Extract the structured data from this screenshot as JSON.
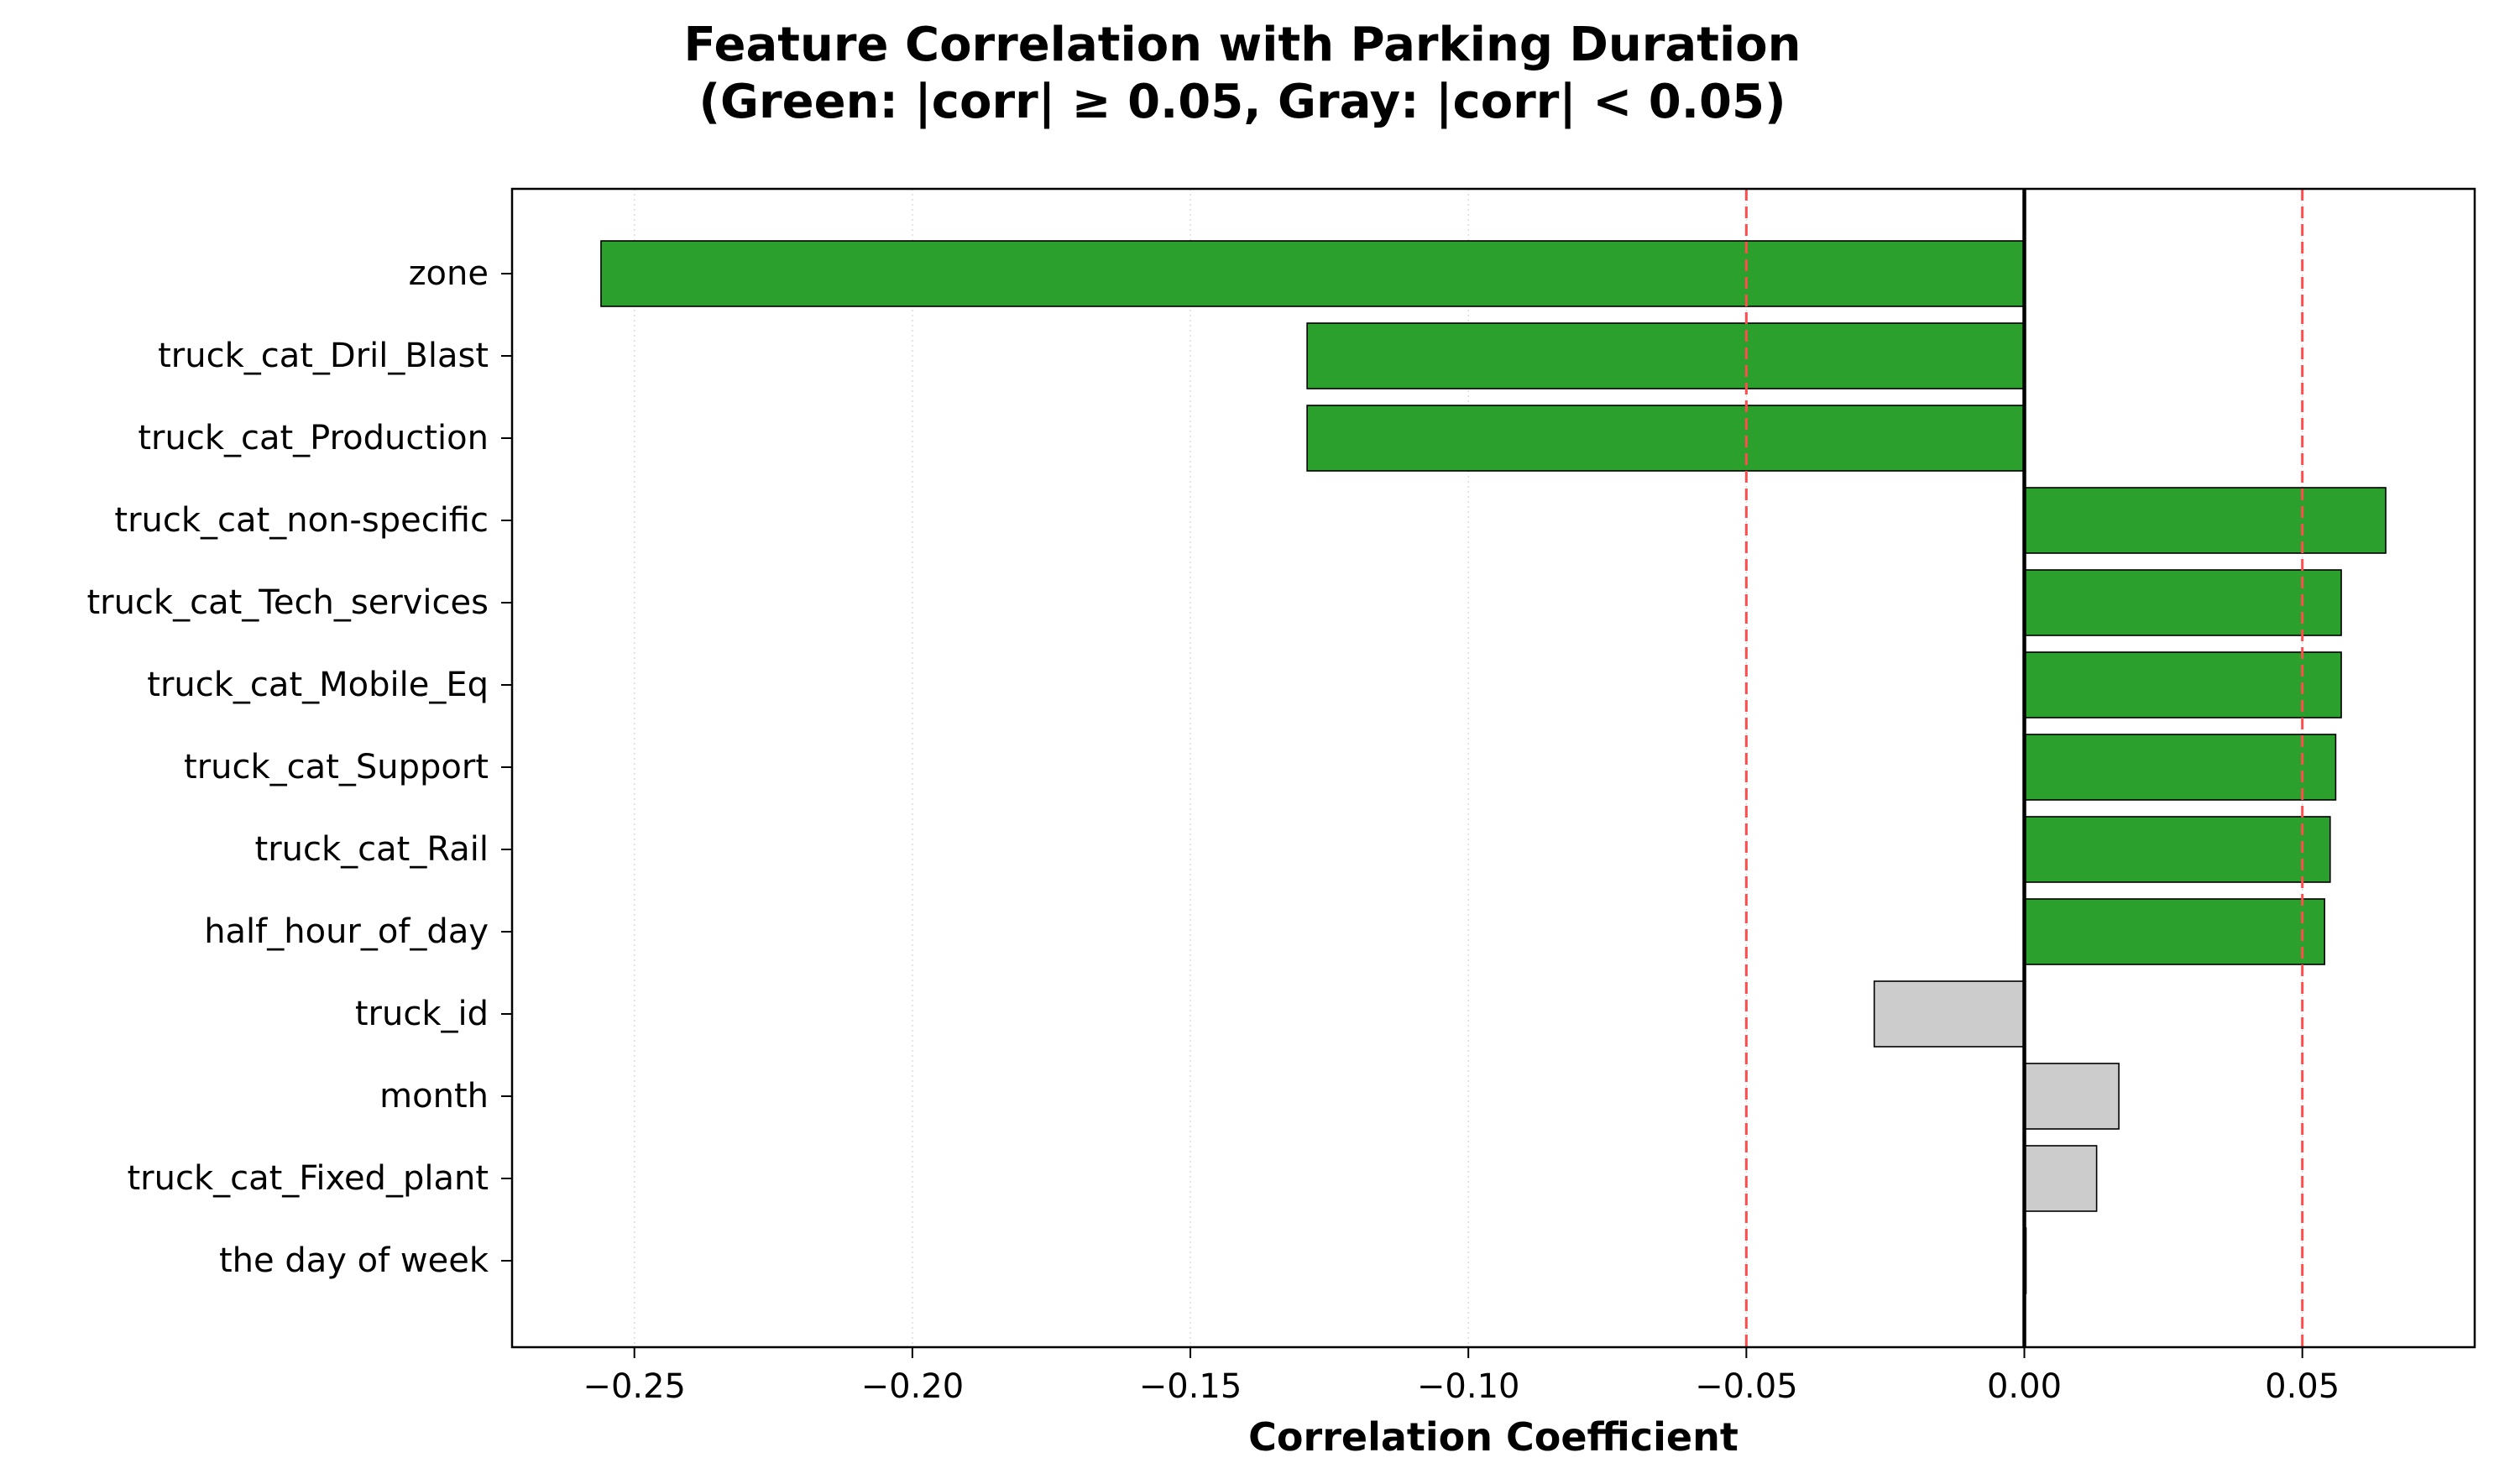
{
  "chart_data": {
    "type": "bar",
    "orientation": "horizontal",
    "title": "Feature Correlation with Parking Duration",
    "subtitle": "(Green: |corr| ≥ 0.05, Gray: |corr| < 0.05)",
    "xlabel": "Correlation Coefficient",
    "ylabel": "",
    "xlim": [
      -0.272,
      0.081
    ],
    "xticks": [
      -0.25,
      -0.2,
      -0.15,
      -0.1,
      -0.05,
      0.0,
      0.05
    ],
    "xtick_labels": [
      "−0.25",
      "−0.20",
      "−0.15",
      "−0.10",
      "−0.05",
      "0.00",
      "0.05"
    ],
    "threshold": 0.05,
    "grid": "x-axis, dotted",
    "colors": {
      "significant": "#2ca02c",
      "insignificant": "#cccccc",
      "threshold_line": "#ff4d4d",
      "edge": "#000000"
    },
    "categories": [
      "zone",
      "truck_cat_Dril_Blast",
      "truck_cat_Production",
      "truck_cat_non-specific",
      "truck_cat_Tech_services",
      "truck_cat_Mobile_Eq",
      "truck_cat_Support",
      "truck_cat_Rail",
      "half_hour_of_day",
      "truck_id",
      "month",
      "truck_cat_Fixed_plant",
      "the day of week"
    ],
    "values": [
      -0.256,
      -0.129,
      -0.129,
      0.065,
      0.057,
      0.057,
      0.056,
      0.055,
      0.054,
      -0.027,
      0.017,
      0.013,
      0.0003
    ]
  }
}
